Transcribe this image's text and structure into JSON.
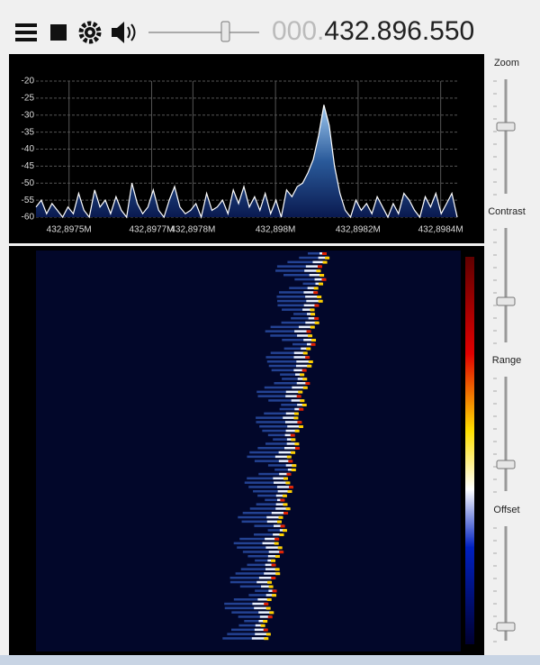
{
  "toolbar": {
    "frequency": {
      "dim": "000.",
      "main": "432.896.550"
    }
  },
  "side_panel": {
    "sliders": [
      "Zoom",
      "Contrast",
      "Range",
      "Offset"
    ]
  },
  "chart_data": {
    "type": "area",
    "values": [
      -57,
      -55,
      -59,
      -56,
      -58,
      -60,
      -57,
      -59,
      -53,
      -58,
      -60,
      -52,
      -57,
      -55,
      -59,
      -54,
      -58,
      -60,
      -50,
      -56,
      -59,
      -57,
      -52,
      -58,
      -60,
      -55,
      -51,
      -57,
      -59,
      -58,
      -56,
      -60,
      -53,
      -58,
      -57,
      -55,
      -59,
      -52,
      -56,
      -51,
      -57,
      -54,
      -58,
      -53,
      -59,
      -55,
      -60,
      -52,
      -54,
      -51,
      -50,
      -47,
      -43,
      -36,
      -27,
      -33,
      -45,
      -53,
      -58,
      -60,
      -55,
      -58,
      -56,
      -59,
      -54,
      -57,
      -60,
      -56,
      -59,
      -53,
      -55,
      -58,
      -60,
      -54,
      -57,
      -53,
      -59,
      -56,
      -53,
      -60
    ],
    "color": "#ffffff",
    "ylim": [
      -60,
      -20
    ],
    "yticks": [
      -20,
      -25,
      -30,
      -35,
      -40,
      -45,
      -50,
      -55,
      -60
    ],
    "xlim": [
      432.89742,
      432.89844
    ],
    "xticks": [
      {
        "value": 432.8975,
        "label": "432,8975M"
      },
      {
        "value": 432.8977,
        "label": "432,8977M"
      },
      {
        "value": 432.8978,
        "label": "432,8978M"
      },
      {
        "value": 432.898,
        "label": "432,898M"
      },
      {
        "value": 432.8982,
        "label": "432,8982M"
      },
      {
        "value": 432.8984,
        "label": "432,8984M"
      }
    ],
    "grid": true
  }
}
